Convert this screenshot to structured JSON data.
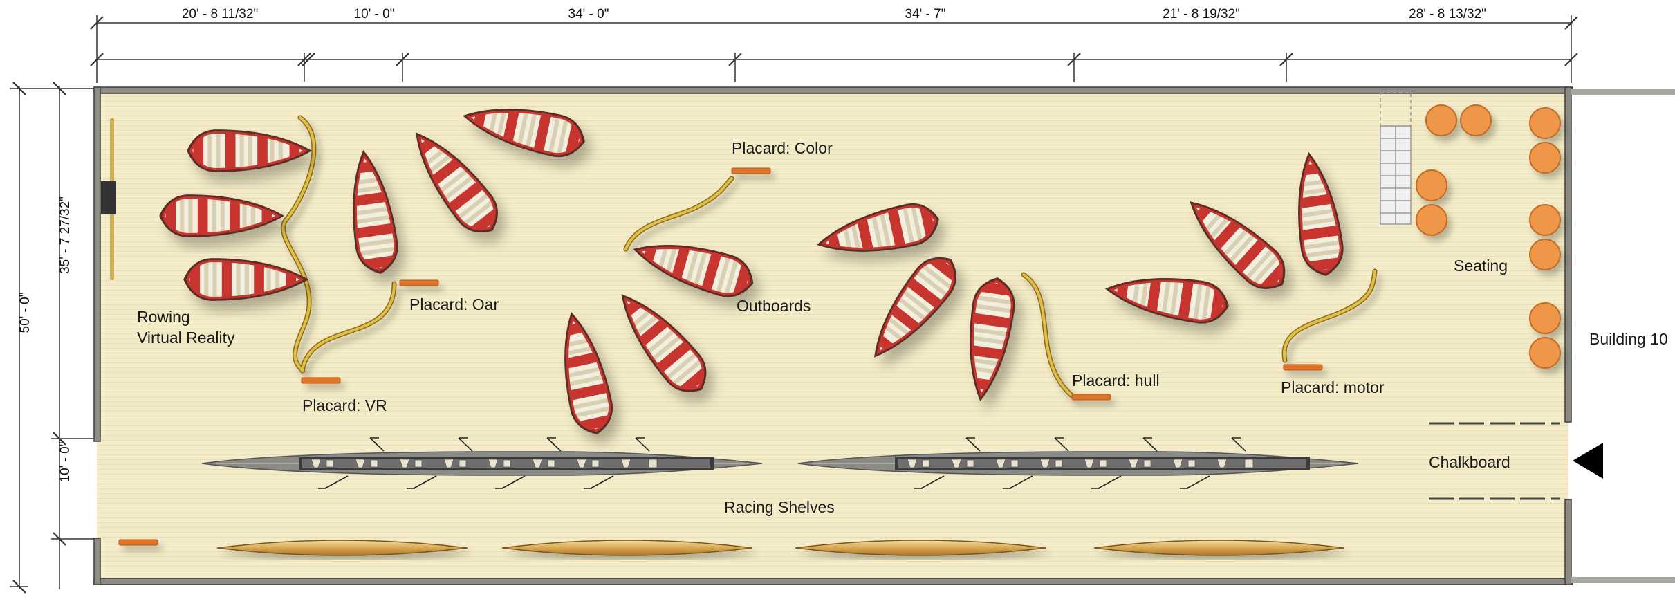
{
  "dimensions": {
    "top": [
      "20' - 8 11/32\"",
      "10' - 0\"",
      "34' - 0\"",
      "34' - 7\"",
      "21' - 8 19/32\"",
      "28' - 8 13/32\""
    ],
    "left_overall": "50' - 0\"",
    "left_upper": "35' - 7 27/32\"",
    "left_lower": "10' - 0\""
  },
  "labels": {
    "rowing_vr_line1": "Rowing",
    "rowing_vr_line2": "Virtual Reality",
    "placard_vr": "Placard: VR",
    "placard_oar": "Placard: Oar",
    "placard_color": "Placard: Color",
    "outboards": "Outboards",
    "placard_hull": "Placard: hull",
    "placard_motor": "Placard: motor",
    "seating": "Seating",
    "building_10": "Building 10",
    "chalkboard": "Chalkboard",
    "racing_shelves": "Racing Shelves"
  },
  "colors": {
    "floor": "#f4ecc8",
    "wall": "#8c8c84",
    "boat_stripe": "#c7352e",
    "boat_hull": "#f3efdf",
    "placard": "#e0742c",
    "seat": "#ee9748",
    "path_line": "#d9b13a",
    "shell": "#7d7d7d"
  },
  "icons": [
    "entry-arrow-icon",
    "projector-icon"
  ]
}
